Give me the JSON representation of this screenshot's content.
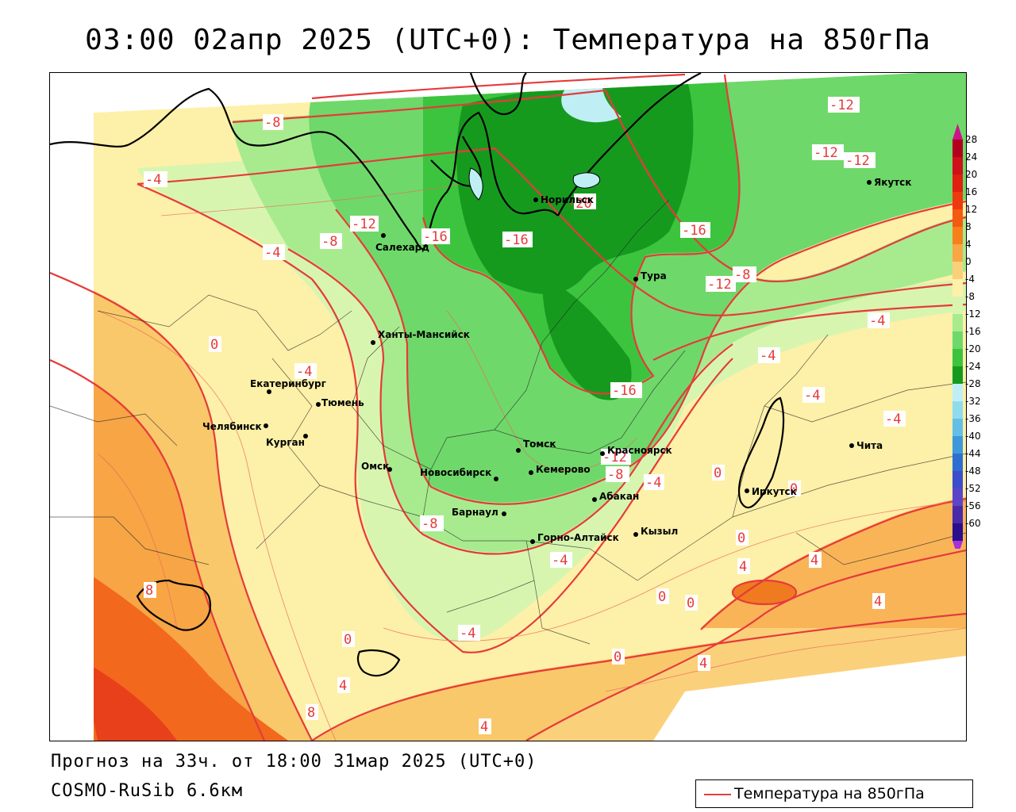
{
  "title": "03:00 02апр 2025 (UTC+0): Температура на 850гПа",
  "footer": {
    "forecast": "Прогноз на 33ч. от 18:00 31мар 2025 (UTC+0)",
    "model": "COSMO-RuSib 6.6км"
  },
  "legend": {
    "label": "Температура на 850гПа",
    "line_color": "#e53b3b"
  },
  "colorbar": {
    "ticks": [
      "28",
      "24",
      "20",
      "16",
      "12",
      "8",
      "4",
      "0",
      "-4",
      "-8",
      "-12",
      "-16",
      "-20",
      "-24",
      "-28",
      "-32",
      "-36",
      "-40",
      "-44",
      "-48",
      "-52",
      "-56",
      "-60"
    ],
    "colors": [
      "#b3001e",
      "#d0101a",
      "#e02010",
      "#ee3a10",
      "#f55a12",
      "#f7801a",
      "#f9a645",
      "#fbd07a",
      "#fdf0a8",
      "#d8f5b0",
      "#a8eb8e",
      "#6fd86a",
      "#3cc43e",
      "#169a1e",
      "#bfeff5",
      "#8fdcee",
      "#64bfe6",
      "#3f98dc",
      "#2d6fd0",
      "#3c4ecc",
      "#5c46c6",
      "#4a2aa8",
      "#2a0e90"
    ],
    "top_color": "#cc1488",
    "bottom_color": "#a830d8"
  },
  "cities": [
    {
      "name": "Норильск"
    },
    {
      "name": "Якутск"
    },
    {
      "name": "Салехард"
    },
    {
      "name": "Тура"
    },
    {
      "name": "Ханты-Мансийск"
    },
    {
      "name": "Екатеринбург"
    },
    {
      "name": "Тюмень"
    },
    {
      "name": "Челябинск"
    },
    {
      "name": "Курган"
    },
    {
      "name": "Омск"
    },
    {
      "name": "Томск"
    },
    {
      "name": "Красноярск"
    },
    {
      "name": "Новосибирск"
    },
    {
      "name": "Кемерово"
    },
    {
      "name": "Абакан"
    },
    {
      "name": "Барнаул"
    },
    {
      "name": "Иркутск"
    },
    {
      "name": "Чита"
    },
    {
      "name": "Кызыл"
    },
    {
      "name": "Горно-Алтайск"
    }
  ],
  "contour_labels": [
    "-8",
    "-4",
    "-12",
    "-8",
    "-4",
    "-16",
    "-16",
    "-20",
    "-16",
    "-12",
    "-12",
    "-12",
    "-8",
    "-12",
    "-4",
    "0",
    "-4",
    "-4",
    "-4",
    "-16",
    "-4",
    "-12",
    "-8",
    "-4",
    "0",
    "0",
    "-8",
    "-4",
    "0",
    "4",
    "4",
    "8",
    "0",
    "0",
    "-4",
    "4",
    "8",
    "0",
    "4",
    "4",
    "0",
    "4"
  ]
}
